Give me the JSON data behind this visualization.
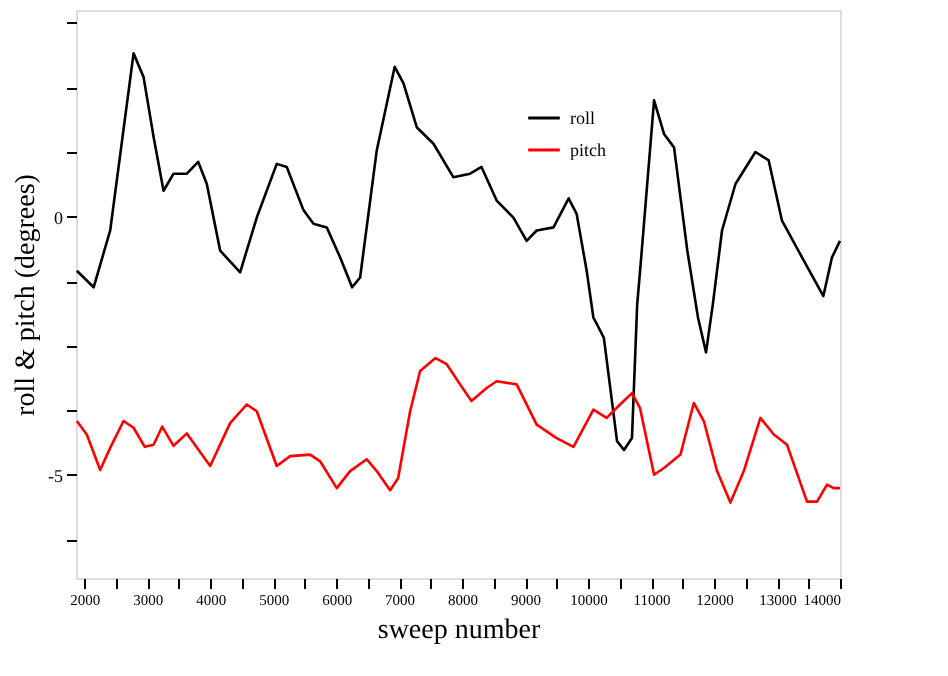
{
  "chart_data": {
    "type": "line",
    "xlabel": "sweep number",
    "ylabel": "roll & pitch (degrees)",
    "xlim": [
      1870,
      14000
    ],
    "ylim": [
      -7,
      4
    ],
    "xticks": [
      2000,
      {
        "value": 2500,
        "label": null
      },
      3000,
      {
        "value": 3500,
        "label": null
      },
      4000,
      {
        "value": 4500,
        "label": null
      },
      5000,
      {
        "value": 5500,
        "label": null
      },
      6000,
      {
        "value": 6500,
        "label": null
      },
      7000,
      {
        "value": 7500,
        "label": null
      },
      8000,
      {
        "value": 8500,
        "label": null
      },
      9000,
      {
        "value": 9500,
        "label": null
      },
      10000,
      {
        "value": 10500,
        "label": null
      },
      11000,
      {
        "value": 11500,
        "label": null
      },
      12000,
      {
        "value": 12500,
        "label": null
      },
      13000,
      {
        "value": 13500,
        "label": null
      },
      14000
    ],
    "yticks": [
      {
        "value": 3.75,
        "label": null
      },
      {
        "value": 2.5,
        "label": null
      },
      {
        "value": 1.25,
        "label": null
      },
      0,
      {
        "value": -1.25,
        "label": null
      },
      {
        "value": -2.5,
        "label": null
      },
      {
        "value": -3.75,
        "label": null
      },
      -5,
      {
        "value": -6.25,
        "label": null
      }
    ],
    "grid": false,
    "legend": "top right",
    "marker": "none",
    "line_style": "solid",
    "series": [
      {
        "name": "roll",
        "color": "#000000",
        "x": [
          1883,
          2150,
          2413,
          2784,
          2943,
          3102,
          3260,
          3419,
          3630,
          3810,
          3947,
          4159,
          4476,
          4740,
          5057,
          5216,
          5483,
          5641,
          5851,
          6063,
          6254,
          6381,
          6645,
          6930,
          7070,
          7280,
          7546,
          7863,
          8127,
          8308,
          8549,
          8815,
          9025,
          9184,
          9451,
          9692,
          9819,
          9978,
          10085,
          10143,
          10251,
          10460,
          10570,
          10697,
          10780,
          10835,
          11048,
          11206,
          11365,
          11576,
          11746,
          11873,
          11981,
          12127,
          12340,
          12657,
          12867,
          13079,
          13397,
          13736,
          13873,
          14000
        ],
        "values": [
          -1.05,
          -1.37,
          -0.27,
          3.16,
          2.7,
          1.54,
          0.5,
          0.83,
          0.83,
          1.06,
          0.63,
          -0.66,
          -1.08,
          -0.02,
          1.02,
          0.96,
          0.12,
          -0.14,
          -0.21,
          -0.79,
          -1.37,
          -1.18,
          1.28,
          2.9,
          2.58,
          1.73,
          1.41,
          0.76,
          0.83,
          0.96,
          0.31,
          -0.02,
          -0.47,
          -0.27,
          -0.21,
          0.35,
          0.05,
          -1.05,
          -1.96,
          -2.09,
          -2.35,
          -4.35,
          -4.52,
          -4.29,
          -1.7,
          -0.92,
          2.25,
          1.6,
          1.34,
          -0.66,
          -1.96,
          -2.63,
          -1.7,
          -0.27,
          0.63,
          1.25,
          1.09,
          -0.08,
          -0.79,
          -1.54,
          -0.79,
          -0.47
        ]
      },
      {
        "name": "pitch",
        "color": "#ff0000",
        "x": [
          1883,
          2041,
          2254,
          2413,
          2625,
          2784,
          2962,
          3102,
          3238,
          3419,
          3630,
          4000,
          4317,
          4581,
          4740,
          5057,
          5270,
          5587,
          5746,
          6010,
          6222,
          6486,
          6645,
          6857,
          6984,
          7175,
          7333,
          7578,
          7756,
          7968,
          8149,
          8390,
          8549,
          8867,
          9184,
          9502,
          9768,
          10085,
          10295,
          10508,
          10698,
          10825,
          11048,
          11206,
          11467,
          11679,
          11838,
          12048,
          12260,
          12473,
          12736,
          12949,
          13159,
          13476,
          13635,
          13794,
          13900,
          14000
        ],
        "values": [
          -3.96,
          -4.22,
          -4.91,
          -4.48,
          -3.96,
          -4.09,
          -4.46,
          -4.42,
          -4.07,
          -4.44,
          -4.2,
          -4.83,
          -4.0,
          -3.64,
          -3.77,
          -4.83,
          -4.64,
          -4.61,
          -4.74,
          -5.26,
          -4.93,
          -4.7,
          -4.93,
          -5.3,
          -5.07,
          -3.77,
          -2.99,
          -2.74,
          -2.86,
          -3.25,
          -3.57,
          -3.32,
          -3.19,
          -3.25,
          -4.03,
          -4.29,
          -4.46,
          -3.74,
          -3.9,
          -3.64,
          -3.42,
          -3.71,
          -5.0,
          -4.87,
          -4.61,
          -3.61,
          -3.96,
          -4.93,
          -5.54,
          -4.93,
          -3.9,
          -4.22,
          -4.42,
          -5.52,
          -5.52,
          -5.19,
          -5.26,
          -5.26
        ]
      }
    ]
  }
}
